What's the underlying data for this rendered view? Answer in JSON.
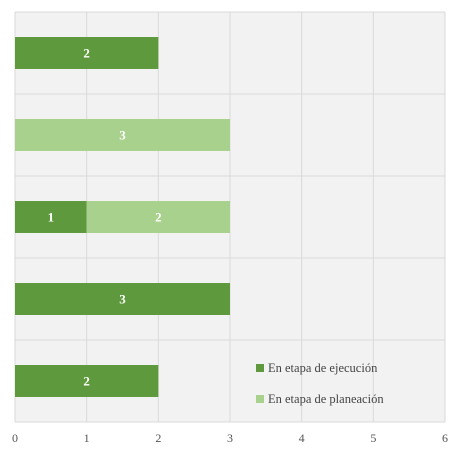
{
  "chart_data": {
    "type": "bar",
    "orientation": "horizontal",
    "stacked": true,
    "categories": [
      "",
      "",
      "",
      "",
      ""
    ],
    "series": [
      {
        "name": "En etapa de ejecución",
        "values": [
          2,
          0,
          1,
          3,
          2
        ],
        "color": "#5e9a3d"
      },
      {
        "name": "En etapa de planeación",
        "values": [
          0,
          3,
          2,
          0,
          0
        ],
        "color": "#a9d18e"
      }
    ],
    "title": "",
    "xlabel": "",
    "ylabel": "",
    "xlim": [
      0,
      6
    ],
    "x_ticks": [
      "0",
      "1",
      "2",
      "3",
      "4",
      "5",
      "6"
    ],
    "grid": true,
    "legend_position": "bottom-right",
    "background_color": "#f2f2f2",
    "grid_color": "#d9d9d9"
  }
}
